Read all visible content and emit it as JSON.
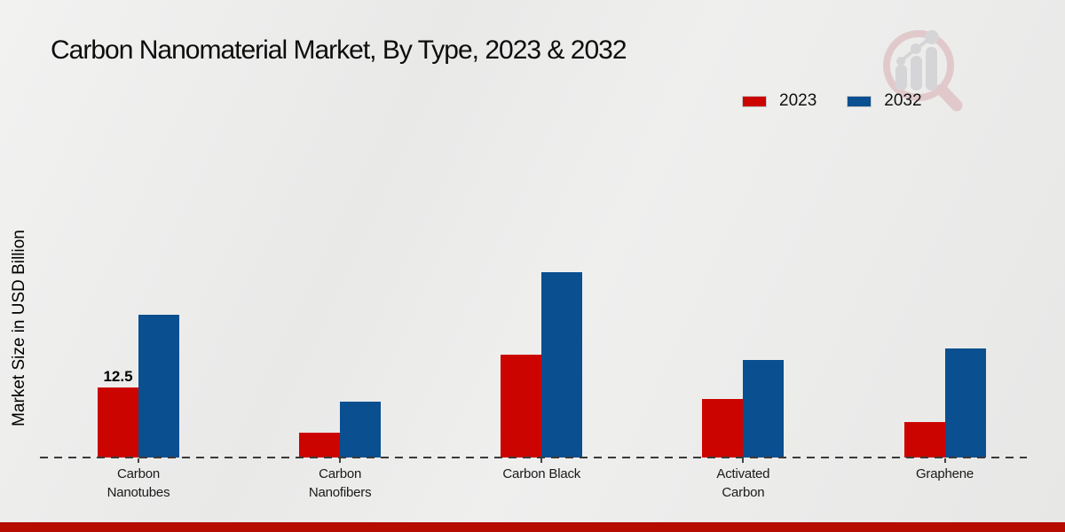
{
  "page": {
    "title": "Carbon Nanomaterial Market, By Type, 2023 & 2032",
    "ylabel": "Market Size in USD Billion",
    "footer_band_color": "#b50b00"
  },
  "icons": {
    "logo": "magnifier-bar-chart-logo"
  },
  "chart_data": {
    "type": "bar",
    "title": "Carbon Nanomaterial Market, By Type, 2023 & 2032",
    "xlabel": "",
    "ylabel": "Market Size in USD Billion",
    "unit": "USD Billion",
    "categories": [
      "Carbon Nanotubes",
      "Carbon Nanofibers",
      "Carbon Black",
      "Activated Carbon",
      "Graphene"
    ],
    "series": [
      {
        "name": "2023",
        "color": "#cc0400",
        "values": [
          12.5,
          4.4,
          18.4,
          10.4,
          6.3
        ],
        "value_labels": [
          "12.5",
          "",
          "",
          "",
          ""
        ]
      },
      {
        "name": "2032",
        "color": "#0a4f8f",
        "values": [
          25.6,
          10.0,
          33.2,
          17.4,
          19.5
        ],
        "value_labels": [
          "",
          "",
          "",
          "",
          ""
        ]
      }
    ],
    "ylim": [
      0,
      35
    ],
    "grid": false,
    "baseline_style": "dashed",
    "legend_position": "top-right"
  }
}
